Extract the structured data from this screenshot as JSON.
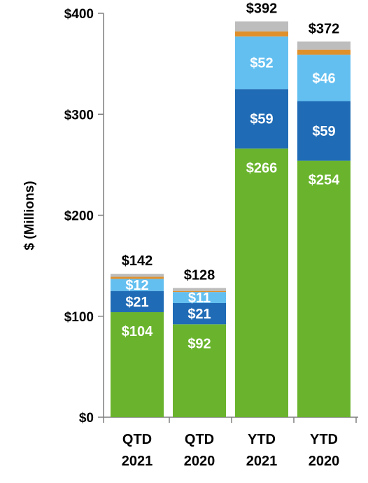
{
  "chart_data": {
    "type": "bar",
    "stacked": true,
    "categories": [
      [
        "QTD",
        "2021"
      ],
      [
        "QTD",
        "2020"
      ],
      [
        "YTD",
        "2021"
      ],
      [
        "YTD",
        "2020"
      ]
    ],
    "ylabel": "$ (Millions)",
    "ylim": [
      0,
      400
    ],
    "yticks": [
      0,
      100,
      200,
      300,
      400
    ],
    "ytick_labels": [
      "$0",
      "$100",
      "$200",
      "$300",
      "$400"
    ],
    "grid": false,
    "series": [
      {
        "color": "#6ab42d",
        "values": [
          104,
          92,
          266,
          254
        ],
        "labels": [
          "$104",
          "$92",
          "$266",
          "$254"
        ]
      },
      {
        "color": "#1f6bb5",
        "values": [
          21,
          21,
          59,
          59
        ],
        "labels": [
          "$21",
          "$21",
          "$59",
          "$59"
        ]
      },
      {
        "color": "#63bff0",
        "values": [
          12,
          11,
          52,
          46
        ],
        "labels": [
          "$12",
          "$11",
          "$52",
          "$46"
        ]
      },
      {
        "color": "#e0902b",
        "values": [
          2,
          1,
          5,
          5
        ],
        "labels": [
          "",
          "",
          "",
          ""
        ]
      },
      {
        "color": "#bdbdbd",
        "values": [
          3,
          3,
          10,
          8
        ],
        "labels": [
          "",
          "",
          "",
          ""
        ]
      }
    ],
    "totals": [
      "$142",
      "$128",
      "$392",
      "$372"
    ]
  }
}
